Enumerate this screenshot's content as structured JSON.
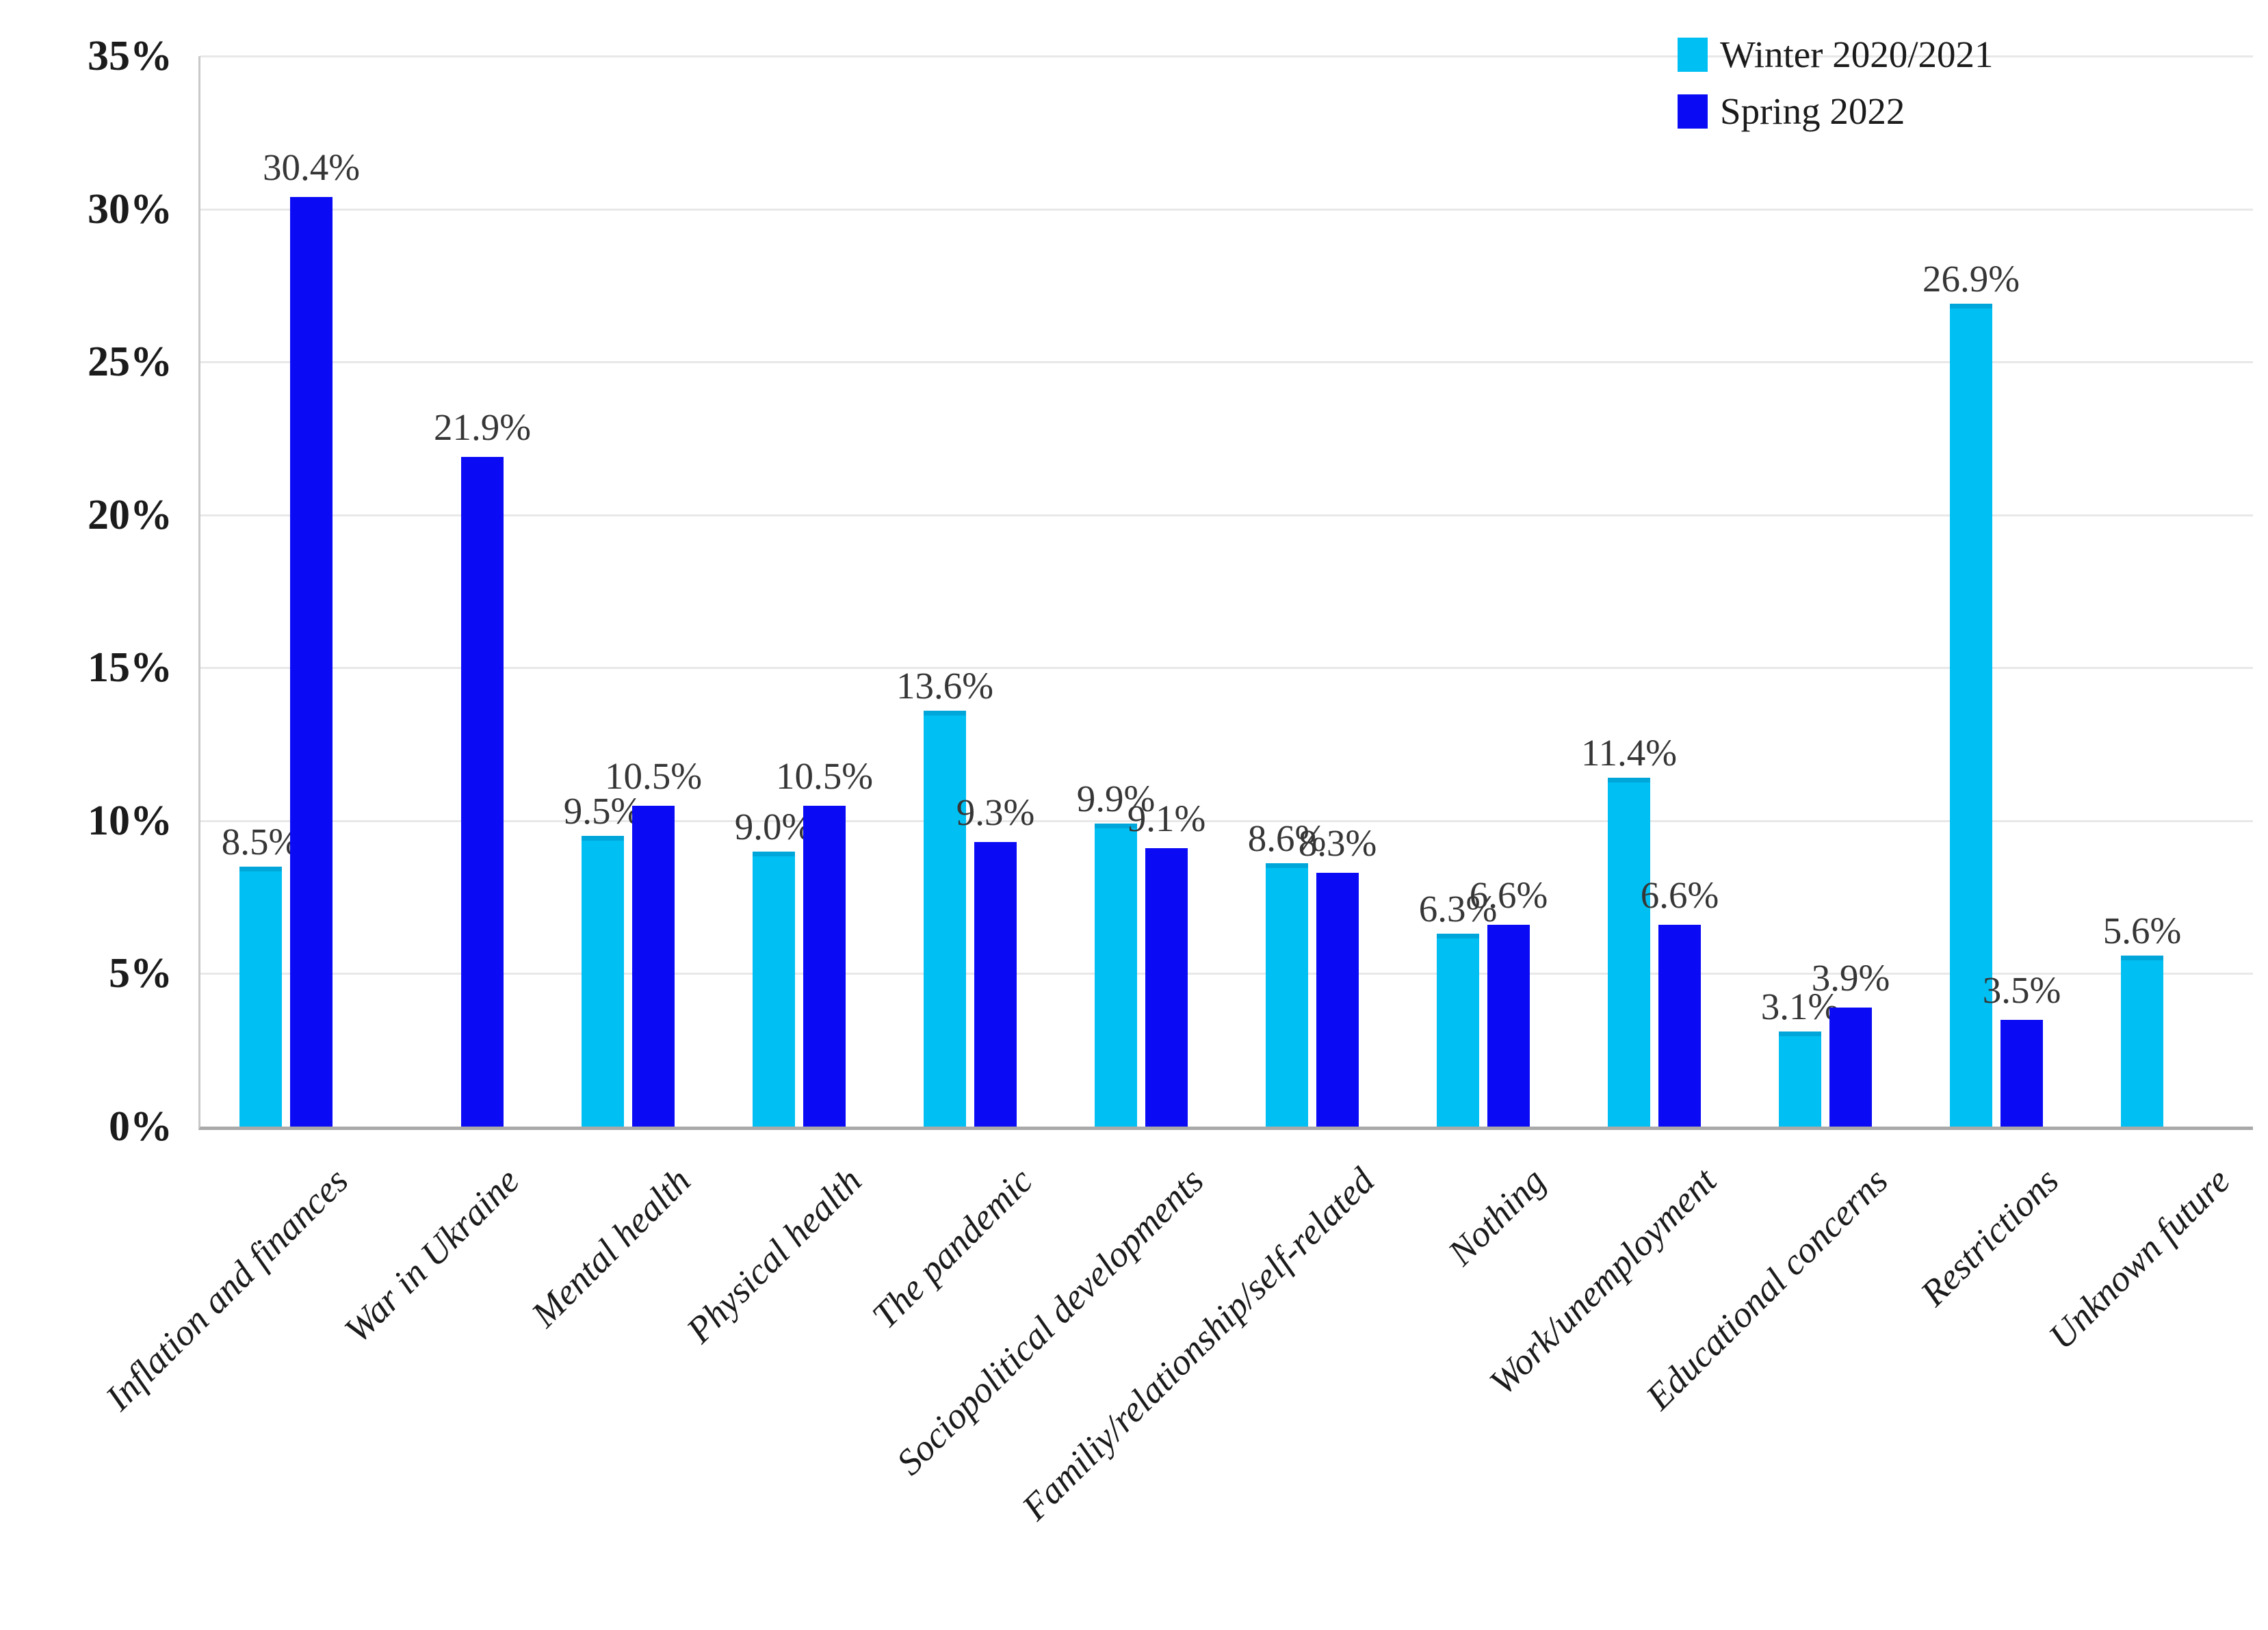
{
  "chart_data": {
    "type": "bar",
    "title": "",
    "xlabel": "",
    "ylabel": "",
    "categories": [
      "Inflation and finances",
      "War in Ukraine",
      "Mental health",
      "Physical health",
      "The pandemic",
      "Sociopolitical developments",
      "Familiy/relationship/self-related",
      "Nothing",
      "Work/unemployment",
      "Educational concerns",
      "Restrictions",
      "Unknown future"
    ],
    "series": [
      {
        "name": "Winter 2020/2021",
        "color": "#00c0f3",
        "values": [
          8.5,
          null,
          9.5,
          9.0,
          13.6,
          9.9,
          8.6,
          6.3,
          11.4,
          3.1,
          26.9,
          5.6
        ]
      },
      {
        "name": "Spring 2022",
        "color": "#0a0af5",
        "values": [
          30.4,
          21.9,
          10.5,
          10.5,
          9.3,
          9.1,
          8.3,
          6.6,
          6.6,
          3.9,
          3.5,
          null
        ]
      }
    ],
    "data_labels": [
      [
        "8.5%",
        null,
        "9.5%",
        "9.0%",
        "13.6%",
        "9.9%",
        "8.6%",
        "6.3%",
        "11.4%",
        "3.1%",
        "26.9%",
        "5.6%"
      ],
      [
        "30.4%",
        "21.9%",
        "10.5%",
        "10.5%",
        "9.3%",
        "9.1%",
        "8.3%",
        "6.6%",
        "6.6%",
        "3.9%",
        "3.5%",
        null
      ]
    ],
    "ylim": [
      0,
      35
    ],
    "ytick_step": 5,
    "ytick_labels": [
      "0%",
      "5%",
      "10%",
      "15%",
      "20%",
      "25%",
      "30%",
      "35%"
    ],
    "grid": true,
    "legend_position": "top-right",
    "colors": {
      "gridline": "#e8e8e8",
      "axis_left": "#c9c9c9",
      "axis_bottom": "#a9a9a9",
      "label_text": "#363636",
      "tick_text": "#1b1b1b"
    }
  }
}
